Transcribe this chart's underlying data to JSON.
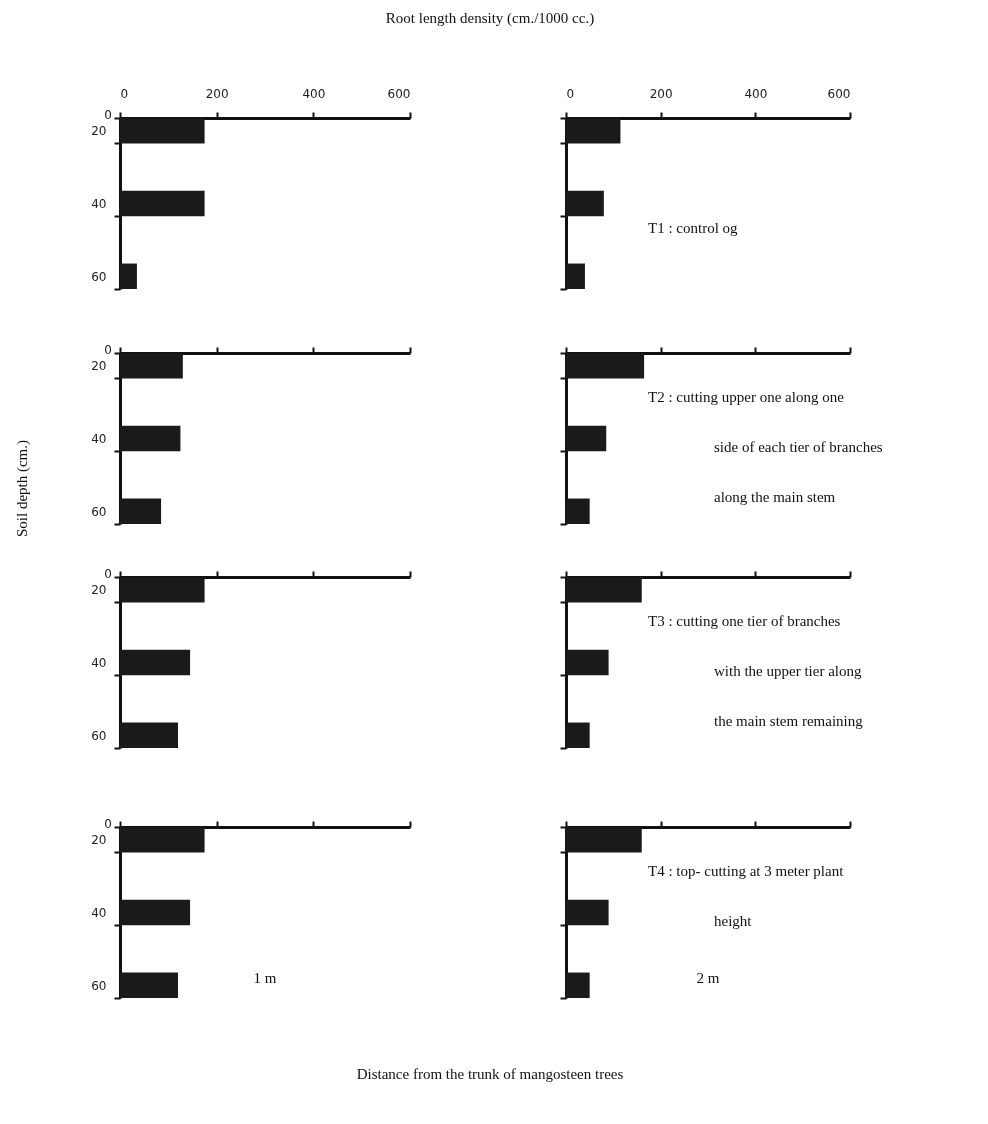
{
  "chart_data": [
    {
      "type": "bar",
      "orientation": "horizontal",
      "xlabel": "Root length density (cm./1000 cc.)",
      "categories": [
        "20",
        "40",
        "60"
      ],
      "values": [
        175,
        175,
        35
      ],
      "color": "#1a1a1a",
      "xlim": [
        0,
        600
      ],
      "xticks": [
        0,
        200,
        400,
        600
      ],
      "annotations": [
        "0"
      ]
    },
    {
      "type": "bar",
      "orientation": "horizontal",
      "categories": [
        "20",
        "40",
        "60"
      ],
      "values": [
        115,
        80,
        40
      ],
      "color": "#1a1a1a",
      "xlim": [
        0,
        600
      ],
      "xticks": [
        0,
        200,
        400,
        600
      ],
      "tick_labels": "x",
      "annotations": [
        "T1 : control og"
      ]
    },
    {
      "type": "bar",
      "orientation": "horizontal",
      "ylabel": "Soil depth (cm.)",
      "categories": [
        "20",
        "40",
        "60"
      ],
      "values": [
        130,
        125,
        85
      ],
      "color": "#1a1a1a",
      "xlim": [
        0,
        600
      ],
      "xticks": [
        0,
        200,
        400,
        600
      ],
      "tick_labels": "y",
      "annotations": [
        "0"
      ]
    },
    {
      "type": "bar",
      "orientation": "horizontal",
      "categories": [
        "20",
        "40",
        "60"
      ],
      "values": [
        165,
        85,
        50
      ],
      "color": "#1a1a1a",
      "xlim": [
        0,
        600
      ],
      "xticks": [
        0,
        200,
        400,
        600
      ],
      "tick_labels": false,
      "annotations": [
        "T2 : cutting upper one along one",
        "side of each tier of branches",
        "along the main stem"
      ]
    },
    {
      "type": "bar",
      "orientation": "horizontal",
      "categories": [
        "20",
        "40",
        "60"
      ],
      "values": [
        175,
        145,
        120
      ],
      "color": "#1a1a1a",
      "xlim": [
        0,
        600
      ],
      "xticks": [
        0,
        200,
        400,
        600
      ],
      "tick_labels": "y",
      "annotations": [
        "0"
      ]
    },
    {
      "type": "bar",
      "orientation": "horizontal",
      "categories": [
        "20",
        "40",
        "60"
      ],
      "values": [
        160,
        90,
        50
      ],
      "color": "#1a1a1a",
      "xlim": [
        0,
        600
      ],
      "xticks": [
        0,
        200,
        400,
        600
      ],
      "tick_labels": false,
      "annotations": [
        "T3 : cutting one tier of branches",
        "with the upper tier along",
        "the main stem remaining"
      ]
    },
    {
      "type": "bar",
      "orientation": "horizontal",
      "xlabel": "1 m",
      "categories": [
        "20",
        "40",
        "60"
      ],
      "values": [
        175,
        145,
        120
      ],
      "color": "#1a1a1a",
      "xlim": [
        0,
        600
      ],
      "xticks": [
        0,
        200,
        400,
        600
      ],
      "tick_labels": "y",
      "annotations": [
        "0",
        "Distance from the trunk of mangosteen trees"
      ]
    },
    {
      "type": "bar",
      "orientation": "horizontal",
      "xlabel": "2 m",
      "categories": [
        "20",
        "40",
        "60"
      ],
      "values": [
        160,
        90,
        50
      ],
      "color": "#1a1a1a",
      "xlim": [
        0,
        600
      ],
      "xticks": [
        0,
        200,
        400,
        600
      ],
      "tick_labels": false,
      "annotations": [
        "T4 : top- cutting at 3 meter plant",
        "height"
      ]
    }
  ]
}
